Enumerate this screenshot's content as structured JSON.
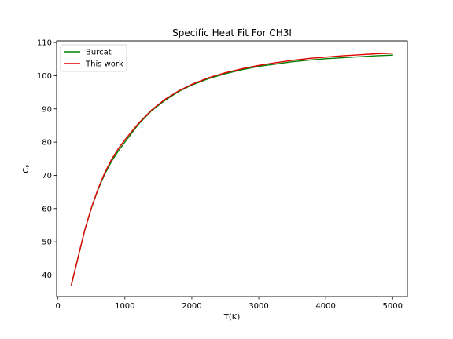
{
  "chart_data": {
    "type": "line",
    "title": "Specific Heat Fit For CH3I",
    "xlabel": "T(K)",
    "ylabel": "Cₚ",
    "xlim": [
      -20,
      5220
    ],
    "ylim": [
      33.5,
      110.5
    ],
    "xticks": [
      0,
      1000,
      2000,
      3000,
      4000,
      5000
    ],
    "yticks": [
      40,
      50,
      60,
      70,
      80,
      90,
      100,
      110
    ],
    "grid": false,
    "legend_position": "top-left",
    "series": [
      {
        "name": "Burcat",
        "color": "#008000",
        "x": [
          200,
          300,
          400,
          500,
          600,
          700,
          800,
          900,
          1000,
          1200,
          1400,
          1600,
          1800,
          2000,
          2250,
          2500,
          2750,
          3000,
          3250,
          3500,
          3750,
          4000,
          4250,
          4500,
          4750,
          5000
        ],
        "y": [
          37.0,
          45.3,
          53.5,
          60.2,
          65.8,
          70.4,
          74.2,
          77.3,
          80.0,
          85.3,
          89.5,
          92.6,
          95.2,
          97.2,
          99.1,
          100.6,
          101.8,
          102.8,
          103.5,
          104.2,
          104.7,
          105.1,
          105.4,
          105.7,
          106.0,
          106.2
        ]
      },
      {
        "name": "This work",
        "color": "#e00000",
        "x": [
          200,
          300,
          400,
          500,
          600,
          700,
          800,
          900,
          1000,
          1200,
          1400,
          1600,
          1800,
          2000,
          2250,
          2500,
          2750,
          3000,
          3250,
          3500,
          3750,
          4000,
          4250,
          4500,
          4750,
          5000
        ],
        "y": [
          37.0,
          45.3,
          53.5,
          60.3,
          66.0,
          70.8,
          74.8,
          78.0,
          80.7,
          85.6,
          89.7,
          92.9,
          95.4,
          97.4,
          99.4,
          100.9,
          102.1,
          103.1,
          103.9,
          104.6,
          105.2,
          105.6,
          106.0,
          106.3,
          106.6,
          106.8
        ]
      }
    ]
  }
}
